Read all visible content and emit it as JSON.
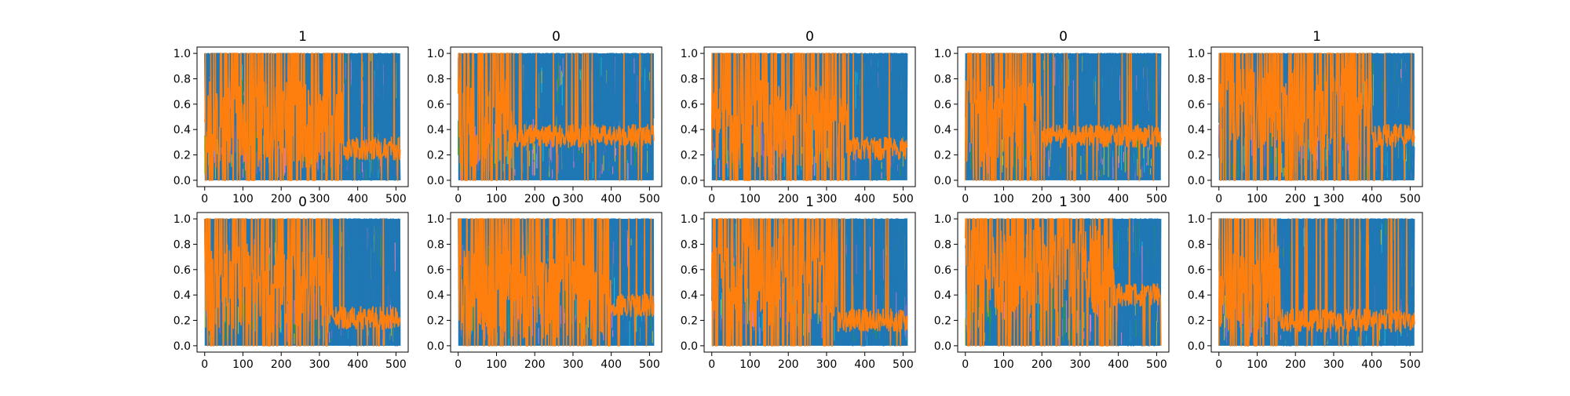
{
  "chart_data": {
    "type": "line",
    "description_note": "",
    "x_ticks": [
      "0",
      "100",
      "200",
      "300",
      "400",
      "500"
    ],
    "y_ticks": [
      "0.0",
      "0.2",
      "0.4",
      "0.6",
      "0.8",
      "1.0"
    ],
    "xlim": [
      -20,
      532
    ],
    "ylim": [
      -0.05,
      1.05
    ],
    "grid": false,
    "series_colors": {
      "blue": "#1f77b4",
      "orange": "#ff7f0e",
      "green": "#2ca02c",
      "cyan": "#17becf",
      "purple": "#9467bd",
      "olive": "#bcbd22",
      "pink": "#e377c2"
    },
    "subplots": [
      {
        "title": "1",
        "orange_level_early": 0.45,
        "orange_level_late": 0.25,
        "shift_x": 360,
        "blue_above_early": 0.85,
        "blue_above_late": 0.3
      },
      {
        "title": "0",
        "orange_level_early": 0.45,
        "orange_level_late": 0.35,
        "shift_x": 140,
        "blue_above_early": 0.9,
        "blue_above_late": 0.55
      },
      {
        "title": "0",
        "orange_level_early": 0.45,
        "orange_level_late": 0.25,
        "shift_x": 360,
        "blue_above_early": 0.85,
        "blue_above_late": 0.35
      },
      {
        "title": "0",
        "orange_level_early": 0.45,
        "orange_level_late": 0.35,
        "shift_x": 200,
        "blue_above_early": 0.85,
        "blue_above_late": 0.55
      },
      {
        "title": "1",
        "orange_level_early": 0.55,
        "orange_level_late": 0.35,
        "shift_x": 400,
        "blue_above_early": 0.9,
        "blue_above_late": 0.3
      },
      {
        "title": "0",
        "orange_level_early": 0.45,
        "orange_level_late": 0.22,
        "shift_x": 330,
        "blue_above_early": 0.85,
        "blue_above_late": 0.35
      },
      {
        "title": "0",
        "orange_level_early": 0.4,
        "orange_level_late": 0.32,
        "shift_x": 400,
        "blue_above_early": 0.85,
        "blue_above_late": 0.45
      },
      {
        "title": "1",
        "orange_level_early": 0.5,
        "orange_level_late": 0.2,
        "shift_x": 330,
        "blue_above_early": 0.85,
        "blue_above_late": 0.3
      },
      {
        "title": "1",
        "orange_level_early": 0.6,
        "orange_level_late": 0.4,
        "shift_x": 390,
        "blue_above_early": 0.9,
        "blue_above_late": 0.3
      },
      {
        "title": "1",
        "orange_level_early": 0.45,
        "orange_level_late": 0.2,
        "shift_x": 160,
        "blue_above_early": 0.85,
        "blue_above_late": 0.3
      }
    ]
  }
}
